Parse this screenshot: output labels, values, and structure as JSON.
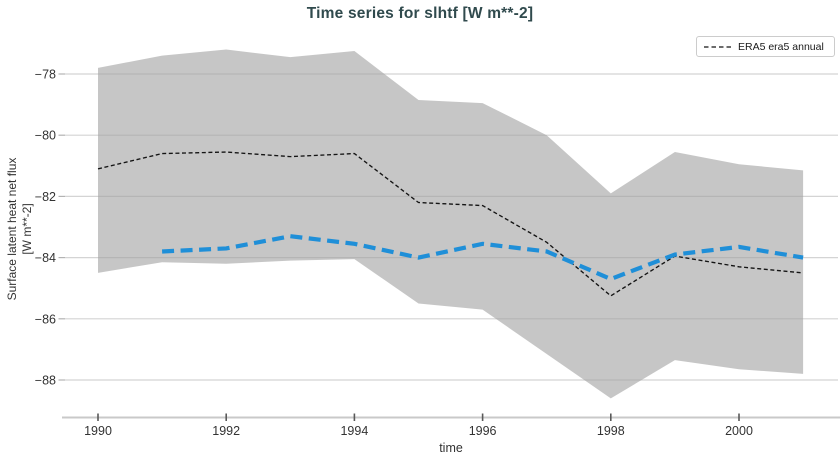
{
  "header": {
    "title": "Time series for slhtf [W m**-2]"
  },
  "axes": {
    "x_label": "time",
    "y_label_line1": "Surface latent heat net flux",
    "y_label_line2": "[W m**-2]",
    "x_ticks": [
      1990,
      1992,
      1994,
      1996,
      1998,
      2000
    ],
    "y_ticks": [
      -78,
      -80,
      -82,
      -84,
      -86,
      -88
    ]
  },
  "legend": {
    "items": [
      {
        "label": "ERA5 era5 annual",
        "style": "dashed-black"
      }
    ]
  },
  "colors": {
    "title": "#304a4d",
    "band": "#c9c9c9",
    "gridline": "#d4d4d4",
    "axis_line": "#c9c9c9",
    "x_tick_mark": "#595959",
    "y_tick_mark": "#b3b3b3",
    "tick_label": "#333333",
    "black_line": "#141414",
    "blue_line": "#1f8fd8"
  },
  "chart_data": {
    "type": "line",
    "title": "Time series for slhtf [W m**-2]",
    "xlabel": "time",
    "ylabel": "Surface latent heat net flux [W m**-2]",
    "xlim": [
      1989.49,
      2001.54
    ],
    "ylim": [
      -89.2,
      -76.7
    ],
    "grid": true,
    "legend_position": "upper right",
    "x": [
      1990,
      1991,
      1992,
      1993,
      1994,
      1995,
      1996,
      1997,
      1998,
      1999,
      2000,
      2001
    ],
    "series": [
      {
        "name": "ERA5 era5 annual",
        "kind": "line",
        "style": "thin-dashed",
        "color": "#141414",
        "in_legend": true,
        "x": [
          1990,
          1991,
          1992,
          1993,
          1994,
          1995,
          1996,
          1997,
          1998,
          1999,
          2000,
          2001
        ],
        "y": [
          -81.1,
          -80.6,
          -80.55,
          -80.7,
          -80.6,
          -82.2,
          -82.3,
          -83.5,
          -85.25,
          -83.95,
          -84.3,
          -84.5
        ]
      },
      {
        "name": "",
        "kind": "line",
        "style": "thick-dashed",
        "color": "#1f8fd8",
        "in_legend": false,
        "x": [
          1991,
          1992,
          1993,
          1994,
          1995,
          1996,
          1997,
          1998,
          1999,
          2000,
          2001
        ],
        "y": [
          -83.8,
          -83.7,
          -83.3,
          -83.55,
          -84.0,
          -83.55,
          -83.8,
          -84.7,
          -83.9,
          -83.65,
          -84.0
        ]
      },
      {
        "name": "",
        "kind": "band",
        "style": "filled-area",
        "color": "#c9c9c9",
        "in_legend": false,
        "x": [
          1990,
          1991,
          1992,
          1993,
          1994,
          1995,
          1996,
          1997,
          1998,
          1999,
          2000,
          2001
        ],
        "upper": [
          -77.8,
          -77.4,
          -77.2,
          -77.45,
          -77.25,
          -78.85,
          -78.95,
          -80.0,
          -81.9,
          -80.55,
          -80.95,
          -81.15
        ],
        "lower": [
          -84.5,
          -84.15,
          -84.2,
          -84.1,
          -84.05,
          -85.5,
          -85.7,
          -87.15,
          -88.6,
          -87.35,
          -87.65,
          -87.8
        ]
      }
    ]
  }
}
